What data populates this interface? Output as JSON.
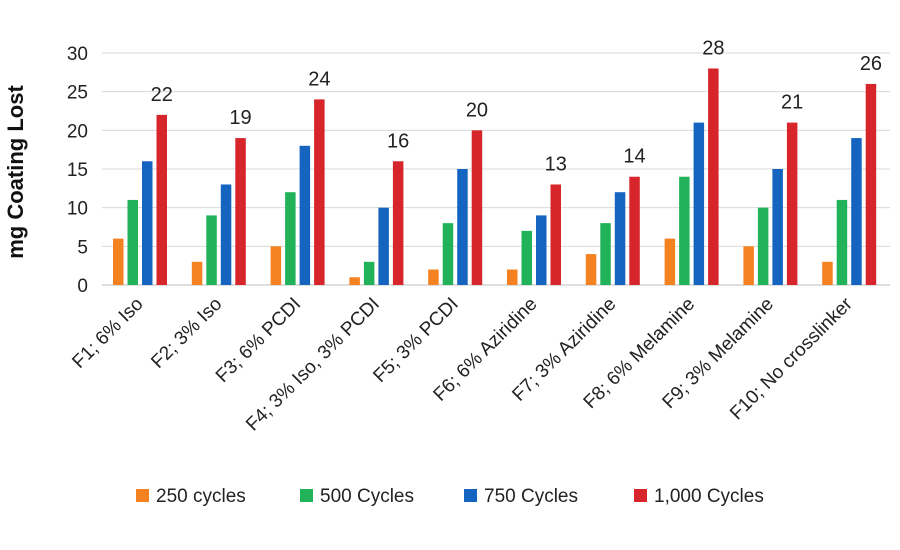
{
  "chart_data": {
    "type": "bar",
    "title": "",
    "xlabel": "",
    "ylabel": "mg Coating Lost",
    "ylim": [
      0,
      30
    ],
    "yticks": [
      0,
      5,
      10,
      15,
      20,
      25,
      30
    ],
    "grid": true,
    "legend_position": "bottom",
    "categories": [
      "F1; 6% Iso",
      "F2; 3% Iso",
      "F3; 6% PCDI",
      "F4; 3% Iso, 3% PCDI",
      "F5; 3% PCDI",
      "F6; 6% Aziridine",
      "F7; 3% Aziridine",
      "F8; 6% Melamine",
      "F9; 3% Melamine",
      "F10; No crosslinker"
    ],
    "series": [
      {
        "name": "250 cycles",
        "color": "#f58220",
        "values": [
          6,
          3,
          5,
          1,
          2,
          2,
          4,
          6,
          5,
          3
        ]
      },
      {
        "name": "500 Cycles",
        "color": "#22b35a",
        "values": [
          11,
          9,
          12,
          3,
          8,
          7,
          8,
          14,
          10,
          11
        ]
      },
      {
        "name": "750 Cycles",
        "color": "#1565c0",
        "values": [
          16,
          13,
          18,
          10,
          15,
          9,
          12,
          21,
          15,
          19
        ]
      },
      {
        "name": "1,000 Cycles",
        "color": "#d7262b",
        "values": [
          22,
          19,
          24,
          16,
          20,
          13,
          14,
          28,
          21,
          26
        ]
      }
    ],
    "data_labels_series": "1,000 Cycles"
  }
}
